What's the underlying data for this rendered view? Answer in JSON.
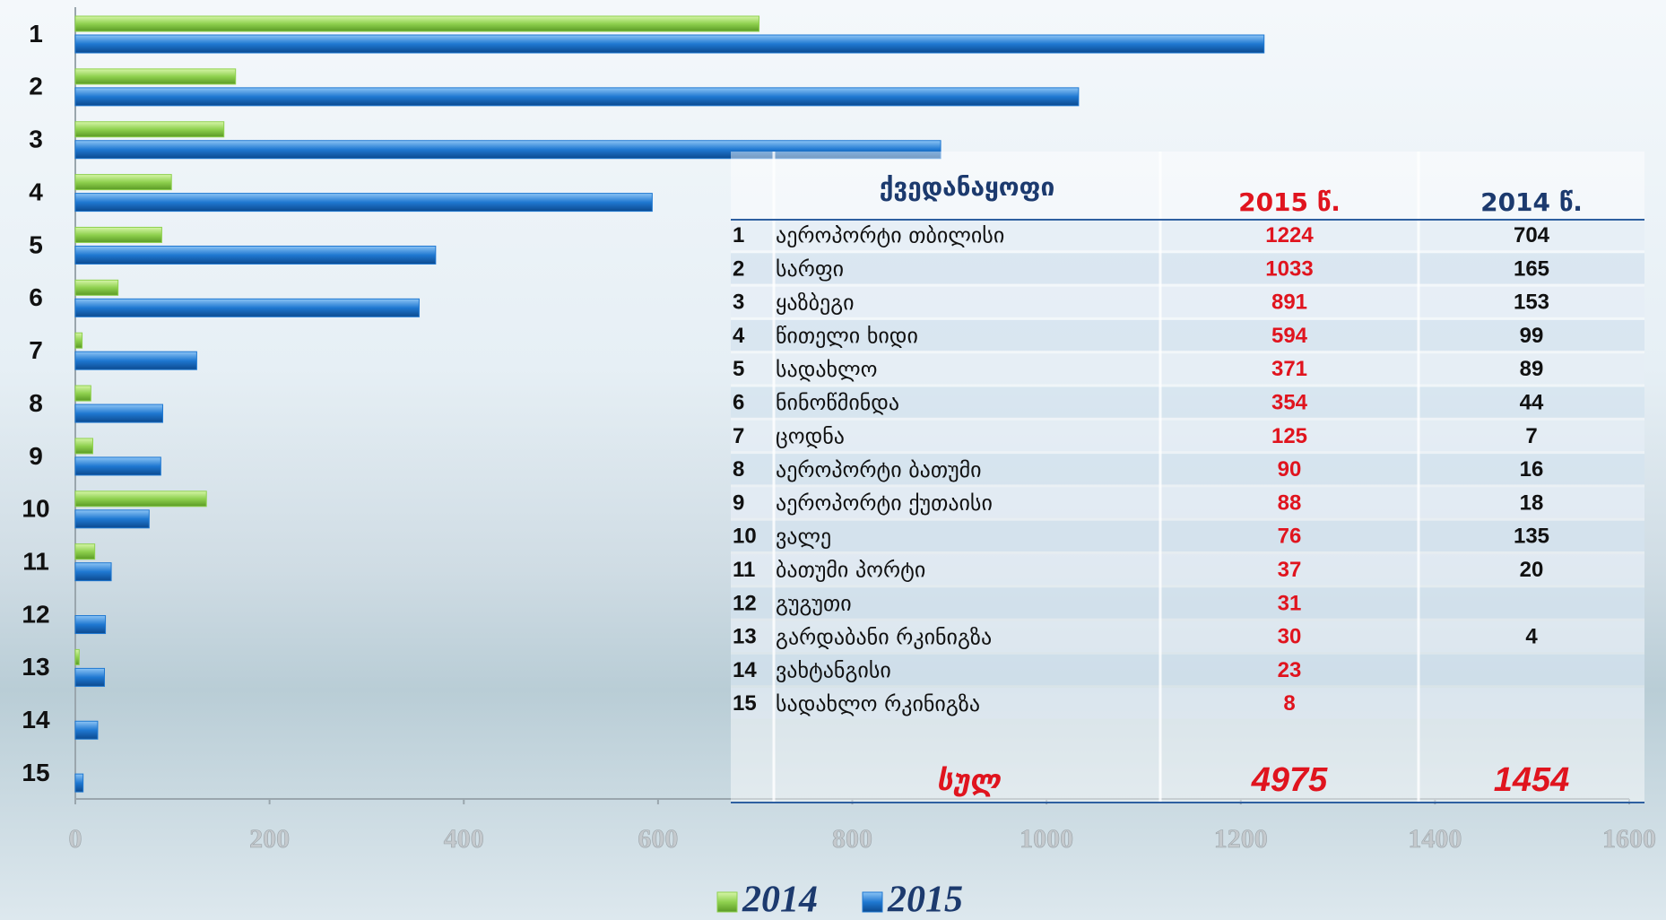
{
  "chart_data": {
    "type": "bar",
    "orientation": "horizontal",
    "categories": [
      "1",
      "2",
      "3",
      "4",
      "5",
      "6",
      "7",
      "8",
      "9",
      "10",
      "11",
      "12",
      "13",
      "14",
      "15"
    ],
    "series": [
      {
        "name": "2014",
        "color": "#8fd14f",
        "values": [
          704,
          165,
          153,
          99,
          89,
          44,
          7,
          16,
          18,
          135,
          20,
          null,
          4,
          null,
          null
        ]
      },
      {
        "name": "2015",
        "color": "#1f78d1",
        "values": [
          1224,
          1033,
          891,
          594,
          371,
          354,
          125,
          90,
          88,
          76,
          37,
          31,
          30,
          23,
          8
        ]
      }
    ],
    "xlim": [
      0,
      1600
    ],
    "xticks": [
      0,
      200,
      400,
      600,
      800,
      1000,
      1200,
      1400,
      1600
    ],
    "legend": "bottom"
  },
  "table": {
    "headers": [
      "ქვედანაყოფი",
      "2015 წ.",
      "2014 წ."
    ],
    "row_names": [
      "აეროპორტი თბილისი",
      "სარფი",
      "ყაზბეგი",
      "წითელი ხიდი",
      "სადახლო",
      "ნინოწმინდა",
      "ცოდნა",
      "აეროპორტი ბათუმი",
      "აეროპორტი ქუთაისი",
      "ვალე",
      "ბათუმი პორტი",
      "გუგუთი",
      "გარდაბანი რკინიგზა",
      "ვახტანგისი",
      "სადახლო რკინიგზა"
    ],
    "total_label": "სულ",
    "totals": [
      4975,
      1454
    ]
  }
}
